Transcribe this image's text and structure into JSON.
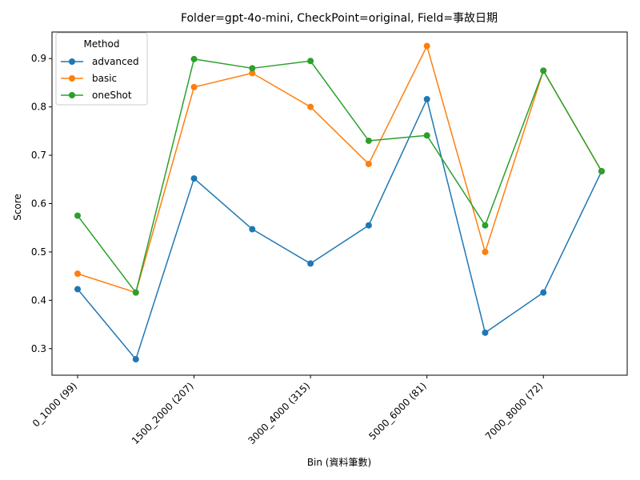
{
  "chart_data": {
    "type": "line",
    "title": "Folder=gpt-4o-mini, CheckPoint=original, Field=事故日期",
    "xlabel": "Bin (資料筆數)",
    "ylabel": "Score",
    "categories": [
      "0_1000 (99)",
      "",
      "1500_2000 (207)",
      "",
      "3000_4000 (315)",
      "",
      "5000_6000 (81)",
      "",
      "7000_8000 (72)",
      ""
    ],
    "yticks": [
      "0.3",
      "0.4",
      "0.5",
      "0.6",
      "0.7",
      "0.8",
      "0.9"
    ],
    "ylim": [
      0.245,
      0.955
    ],
    "grid": false,
    "legend": {
      "title": "Method",
      "position": "top-left"
    },
    "series": [
      {
        "name": "advanced",
        "color": "#1f77b4",
        "values": [
          0.423,
          0.278,
          0.652,
          0.547,
          0.476,
          0.555,
          0.816,
          0.333,
          0.416,
          0.667
        ]
      },
      {
        "name": "basic",
        "color": "#ff7f0e",
        "values": [
          0.455,
          0.416,
          0.841,
          0.87,
          0.8,
          0.682,
          0.926,
          0.5,
          0.875,
          0.667
        ]
      },
      {
        "name": "oneShot",
        "color": "#2ca02c",
        "values": [
          0.575,
          0.416,
          0.899,
          0.88,
          0.895,
          0.73,
          0.741,
          0.555,
          0.875,
          0.667
        ]
      }
    ]
  }
}
